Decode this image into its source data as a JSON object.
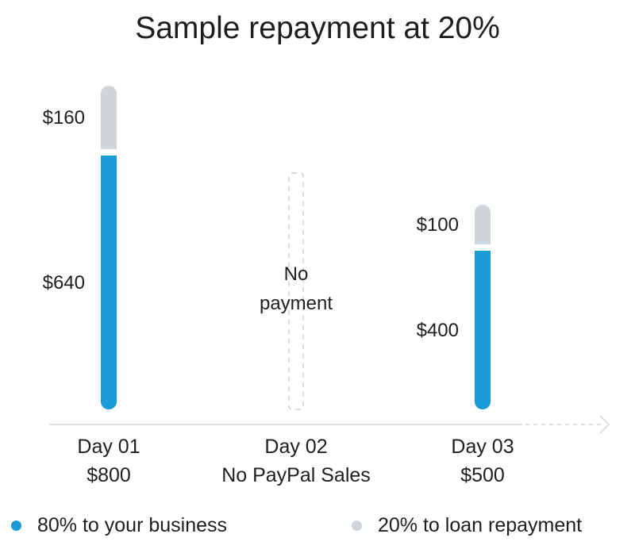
{
  "chart_data": {
    "type": "bar",
    "title": "Sample repayment at 20%",
    "categories": [
      "Day 01",
      "Day 02",
      "Day 03"
    ],
    "category_sublabels": [
      "$800",
      "No PayPal Sales",
      "$500"
    ],
    "series": [
      {
        "name": "80% to your business",
        "color": "#1a9ad6",
        "values": [
          640,
          0,
          400
        ],
        "value_labels": [
          "$640",
          "",
          "$400"
        ]
      },
      {
        "name": "20% to loan repayment",
        "color": "#d0d5da",
        "values": [
          160,
          0,
          100
        ],
        "value_labels": [
          "$160",
          "",
          "$100"
        ]
      }
    ],
    "empty_bar_label": "No\npayment",
    "stacked": true,
    "ylim": [
      0,
      800
    ],
    "grid": false,
    "legend_position": "bottom"
  }
}
